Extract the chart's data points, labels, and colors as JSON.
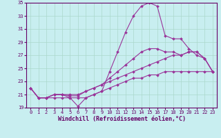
{
  "xlabel": "Windchill (Refroidissement éolien,°C)",
  "background_color": "#c8eef0",
  "grid_color": "#aad8cc",
  "line_color": "#993399",
  "spine_color": "#660066",
  "tick_color": "#660066",
  "xlim": [
    -0.5,
    23.5
  ],
  "ylim": [
    19,
    35
  ],
  "yticks": [
    19,
    21,
    23,
    25,
    27,
    29,
    31,
    33,
    35
  ],
  "xticks": [
    0,
    1,
    2,
    3,
    4,
    5,
    6,
    7,
    8,
    9,
    10,
    11,
    12,
    13,
    14,
    15,
    16,
    17,
    18,
    19,
    20,
    21,
    22,
    23
  ],
  "lines": [
    [
      22.0,
      20.5,
      20.5,
      21.0,
      21.0,
      20.5,
      19.2,
      20.5,
      21.0,
      21.5,
      24.5,
      27.5,
      30.5,
      33.0,
      34.5,
      35.0,
      34.5,
      30.0,
      29.5,
      29.5,
      28.0,
      27.0,
      26.5,
      24.5
    ],
    [
      22.0,
      20.5,
      20.5,
      21.0,
      21.0,
      20.8,
      20.8,
      21.5,
      22.0,
      22.5,
      23.5,
      24.5,
      25.5,
      26.5,
      27.5,
      28.0,
      28.0,
      27.5,
      27.5,
      27.0,
      27.5,
      27.5,
      26.5,
      24.5
    ],
    [
      22.0,
      20.5,
      20.5,
      21.0,
      21.0,
      21.0,
      21.0,
      21.5,
      22.0,
      22.5,
      23.0,
      23.5,
      24.0,
      24.5,
      25.0,
      25.5,
      26.0,
      26.5,
      27.0,
      27.0,
      27.5,
      27.5,
      26.5,
      24.5
    ],
    [
      22.0,
      20.5,
      20.5,
      20.5,
      20.5,
      20.5,
      20.5,
      20.5,
      21.0,
      21.5,
      22.0,
      22.5,
      23.0,
      23.5,
      23.5,
      24.0,
      24.0,
      24.5,
      24.5,
      24.5,
      24.5,
      24.5,
      24.5,
      24.5
    ]
  ],
  "marker": "D",
  "markersize": 2.0,
  "linewidth": 0.8,
  "xlabel_fontsize": 6.0,
  "tick_fontsize": 5.0,
  "bottom_bar_color": "#993399"
}
